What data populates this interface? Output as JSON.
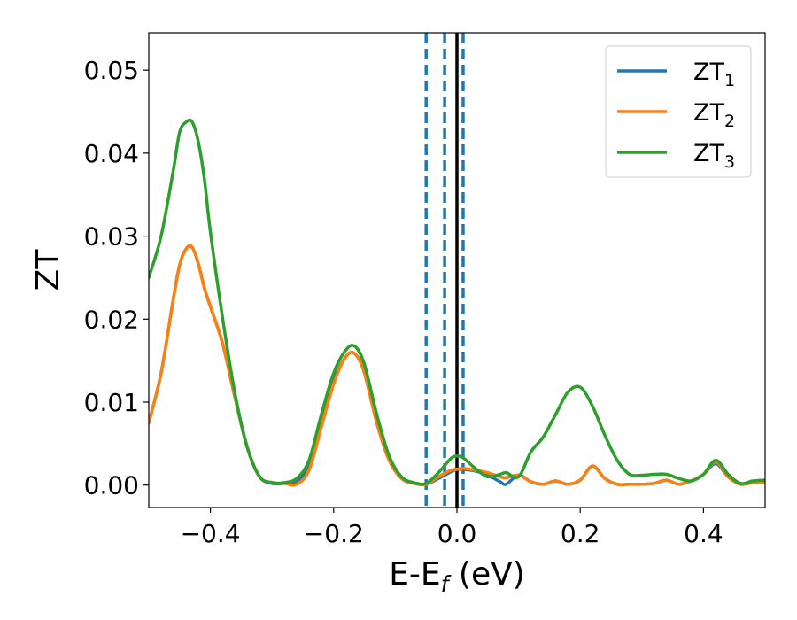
{
  "chart_data": {
    "type": "line",
    "title": "",
    "xlabel": "E-E",
    "xlabel_sub": "f",
    "xlabel_unit": " (eV)",
    "ylabel": "ZT",
    "xlim": [
      -0.5,
      0.5
    ],
    "ylim": [
      -0.0027,
      0.0545
    ],
    "xticks": [
      -0.4,
      -0.2,
      0.0,
      0.2,
      0.4
    ],
    "xtick_labels": [
      "−0.4",
      "−0.2",
      "0.0",
      "0.2",
      "0.4"
    ],
    "yticks": [
      0.0,
      0.01,
      0.02,
      0.03,
      0.04,
      0.05
    ],
    "ytick_labels": [
      "0.00",
      "0.01",
      "0.02",
      "0.03",
      "0.04",
      "0.05"
    ],
    "grid": false,
    "legend_position": "top-right",
    "vlines_dashed": [
      -0.05,
      -0.02,
      0.01
    ],
    "vline_solid": 0.0,
    "colors": {
      "vline_dashed": "#1f77b4",
      "vline_solid": "#000000"
    },
    "x": [
      -0.5,
      -0.48,
      -0.46,
      -0.45,
      -0.44,
      -0.43,
      -0.42,
      -0.41,
      -0.4,
      -0.38,
      -0.36,
      -0.34,
      -0.32,
      -0.3,
      -0.28,
      -0.26,
      -0.24,
      -0.22,
      -0.2,
      -0.18,
      -0.165,
      -0.15,
      -0.13,
      -0.11,
      -0.09,
      -0.07,
      -0.05,
      -0.03,
      -0.01,
      0.0,
      0.01,
      0.03,
      0.05,
      0.07,
      0.08,
      0.1,
      0.12,
      0.14,
      0.16,
      0.18,
      0.2,
      0.22,
      0.24,
      0.26,
      0.28,
      0.3,
      0.32,
      0.34,
      0.36,
      0.38,
      0.4,
      0.42,
      0.44,
      0.46,
      0.48,
      0.5
    ],
    "series": [
      {
        "name": "ZT",
        "name_sub": "1",
        "color": "#1f77b4",
        "values": [
          0.0075,
          0.0135,
          0.0225,
          0.0265,
          0.0284,
          0.0287,
          0.0268,
          0.0238,
          0.0215,
          0.017,
          0.0105,
          0.0045,
          0.001,
          0.0002,
          0.0002,
          0.0004,
          0.0025,
          0.0075,
          0.0125,
          0.0155,
          0.0158,
          0.0135,
          0.0075,
          0.003,
          0.0008,
          0.0002,
          0.0001,
          0.0008,
          0.0016,
          0.0019,
          0.0019,
          0.0017,
          0.0012,
          0.0004,
          0.0001,
          0.0012,
          0.0004,
          0.0001,
          0.0005,
          0.0001,
          0.0006,
          0.0023,
          0.0008,
          0.0001,
          0.0001,
          0.0001,
          0.0002,
          0.0006,
          0.0001,
          0.0005,
          0.0013,
          0.0026,
          0.001,
          0.0001,
          0.0003,
          0.0003
        ]
      },
      {
        "name": "ZT",
        "name_sub": "2",
        "color": "#ff7f0e",
        "values": [
          0.0075,
          0.0135,
          0.0225,
          0.0265,
          0.0284,
          0.0287,
          0.0268,
          0.0238,
          0.0215,
          0.017,
          0.0105,
          0.0045,
          0.001,
          0.0003,
          0.0002,
          0.0001,
          0.0018,
          0.007,
          0.0122,
          0.0155,
          0.0158,
          0.0135,
          0.0075,
          0.003,
          0.0008,
          0.0002,
          0.0001,
          0.001,
          0.0018,
          0.0019,
          0.002,
          0.0018,
          0.0015,
          0.001,
          0.0009,
          0.0012,
          0.0004,
          0.0001,
          0.0005,
          0.0001,
          0.0006,
          0.0023,
          0.0008,
          0.0001,
          0.0001,
          0.0001,
          0.0002,
          0.0006,
          0.0001,
          0.0005,
          0.0013,
          0.0028,
          0.001,
          0.0001,
          0.0003,
          0.0003
        ]
      },
      {
        "name": "ZT",
        "name_sub": "3",
        "color": "#2ca02c",
        "values": [
          0.025,
          0.03,
          0.038,
          0.0425,
          0.0437,
          0.0438,
          0.0415,
          0.037,
          0.0305,
          0.02,
          0.011,
          0.0045,
          0.001,
          0.0003,
          0.0003,
          0.0008,
          0.003,
          0.0085,
          0.0135,
          0.0163,
          0.0167,
          0.0145,
          0.0085,
          0.0035,
          0.001,
          0.0003,
          0.0002,
          0.0015,
          0.0032,
          0.0035,
          0.0033,
          0.002,
          0.001,
          0.0013,
          0.0015,
          0.001,
          0.004,
          0.0058,
          0.0085,
          0.0112,
          0.0118,
          0.0095,
          0.006,
          0.003,
          0.0013,
          0.0012,
          0.0013,
          0.0013,
          0.0008,
          0.0005,
          0.0013,
          0.003,
          0.0013,
          0.0002,
          0.0005,
          0.0006
        ]
      }
    ]
  }
}
